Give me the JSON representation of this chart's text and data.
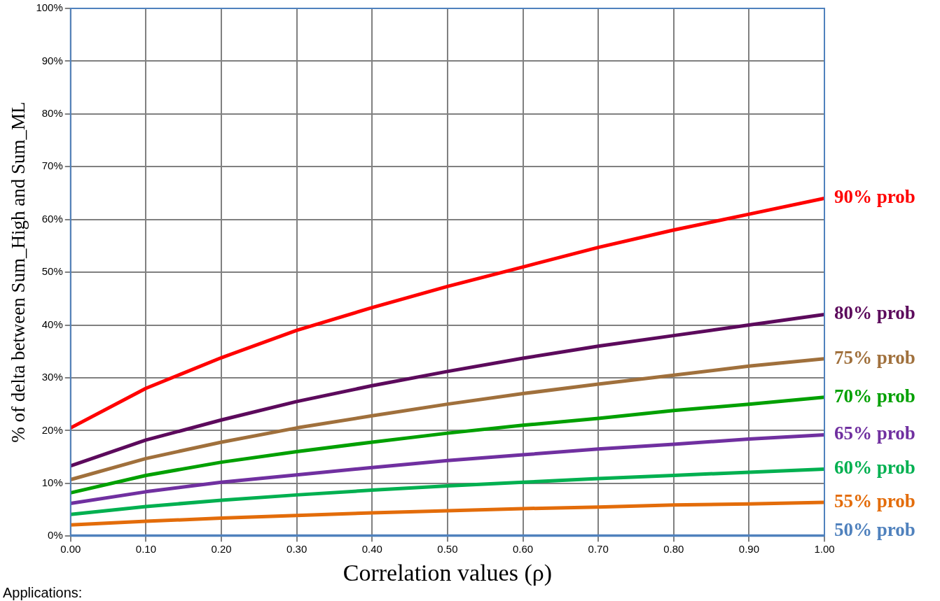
{
  "chart_data": {
    "type": "line",
    "xlabel": "Correlation values (ρ)",
    "ylabel": "% of delta between Sum_High and Sum_ML",
    "x": [
      0,
      0.1,
      0.2,
      0.3,
      0.4,
      0.5,
      0.6,
      0.7,
      0.8,
      0.9,
      1.0
    ],
    "series": [
      {
        "name": "90% prob",
        "color": "#ff0000",
        "values": [
          20.5,
          28,
          33.8,
          39,
          43.3,
          47.3,
          51,
          54.7,
          58,
          61,
          64
        ]
      },
      {
        "name": "80% prob",
        "color": "#5c0a5c",
        "values": [
          13.3,
          18.2,
          22,
          25.5,
          28.5,
          31.2,
          33.7,
          36,
          38,
          40,
          42
        ]
      },
      {
        "name": "75% prob",
        "color": "#a0703c",
        "values": [
          10.7,
          14.7,
          17.8,
          20.5,
          22.8,
          25,
          27,
          28.8,
          30.5,
          32.2,
          33.6
        ]
      },
      {
        "name": "70% prob",
        "color": "#00a000",
        "values": [
          8.2,
          11.5,
          14,
          16,
          17.8,
          19.5,
          21,
          22.3,
          23.8,
          25,
          26.3
        ]
      },
      {
        "name": "65% prob",
        "color": "#7030a0",
        "values": [
          6.2,
          8.4,
          10.2,
          11.6,
          13,
          14.3,
          15.4,
          16.5,
          17.4,
          18.4,
          19.2
        ]
      },
      {
        "name": "60% prob",
        "color": "#00b050",
        "values": [
          4.1,
          5.6,
          6.8,
          7.8,
          8.7,
          9.5,
          10.2,
          10.9,
          11.5,
          12.1,
          12.7
        ]
      },
      {
        "name": "55% prob",
        "color": "#e36c0a",
        "values": [
          2.1,
          2.8,
          3.4,
          3.9,
          4.4,
          4.8,
          5.2,
          5.5,
          5.9,
          6.1,
          6.4
        ]
      },
      {
        "name": "50% prob",
        "color": "#4f81bd",
        "values": [
          0,
          0,
          0,
          0,
          0,
          0,
          0,
          0,
          0,
          0,
          0
        ]
      }
    ],
    "xlim": [
      0,
      1
    ],
    "xticks": [
      {
        "value": 0,
        "label": "0.00"
      },
      {
        "value": 0.1,
        "label": "0.10"
      },
      {
        "value": 0.2,
        "label": "0.20"
      },
      {
        "value": 0.3,
        "label": "0.30"
      },
      {
        "value": 0.4,
        "label": "0.40"
      },
      {
        "value": 0.5,
        "label": "0.50"
      },
      {
        "value": 0.6,
        "label": "0.60"
      },
      {
        "value": 0.7,
        "label": "0.70"
      },
      {
        "value": 0.8,
        "label": "0.80"
      },
      {
        "value": 0.9,
        "label": "0.90"
      },
      {
        "value": 1,
        "label": "1.00"
      }
    ],
    "ylim": [
      0,
      100
    ],
    "yticks": [
      {
        "value": 0,
        "label": "0%"
      },
      {
        "value": 10,
        "label": "10%"
      },
      {
        "value": 20,
        "label": "20%"
      },
      {
        "value": 30,
        "label": "30%"
      },
      {
        "value": 40,
        "label": "40%"
      },
      {
        "value": 50,
        "label": "50%"
      },
      {
        "value": 60,
        "label": "60%"
      },
      {
        "value": 70,
        "label": "70%"
      },
      {
        "value": 80,
        "label": "80%"
      },
      {
        "value": 90,
        "label": "90%"
      },
      {
        "value": 100,
        "label": "100%"
      }
    ],
    "grid": true,
    "legend": false,
    "marker": "none",
    "line_style": "solid",
    "annotations": [
      "Applications:"
    ]
  }
}
